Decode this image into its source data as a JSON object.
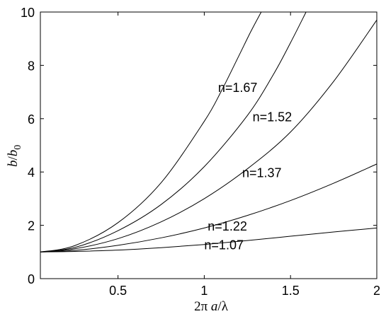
{
  "chart_data": {
    "type": "line",
    "xlabel": {
      "prefix": "2π ",
      "var": "a",
      "suffix": "/λ"
    },
    "ylabel": {
      "num": "b",
      "slash": "/",
      "den": "b",
      "sub": "0"
    },
    "xlim": [
      0.05,
      2.0
    ],
    "ylim": [
      0,
      10
    ],
    "xticks": [
      {
        "value": 0.5,
        "label": "0.5"
      },
      {
        "value": 1.0,
        "label": "1"
      },
      {
        "value": 1.5,
        "label": "1.5"
      },
      {
        "value": 2.0,
        "label": "2"
      }
    ],
    "yticks": [
      {
        "value": 0,
        "label": "0"
      },
      {
        "value": 2,
        "label": "2"
      },
      {
        "value": 4,
        "label": "4"
      },
      {
        "value": 6,
        "label": "6"
      },
      {
        "value": 8,
        "label": "8"
      },
      {
        "value": 10,
        "label": "10"
      }
    ],
    "grid": false,
    "series": [
      {
        "name": "n=1.07",
        "x": [
          0.05,
          0.25,
          0.5,
          0.75,
          1.0,
          1.25,
          1.5,
          1.75,
          2.0
        ],
        "y": [
          1.0,
          1.02,
          1.07,
          1.16,
          1.28,
          1.43,
          1.59,
          1.75,
          1.9
        ]
      },
      {
        "name": "n=1.22",
        "x": [
          0.05,
          0.25,
          0.5,
          0.75,
          1.0,
          1.25,
          1.5,
          1.75,
          2.0
        ],
        "y": [
          1.0,
          1.06,
          1.25,
          1.53,
          1.9,
          2.37,
          2.93,
          3.58,
          4.3
        ]
      },
      {
        "name": "n=1.37",
        "x": [
          0.05,
          0.25,
          0.5,
          0.75,
          1.0,
          1.25,
          1.5,
          1.75,
          2.0
        ],
        "y": [
          1.0,
          1.12,
          1.5,
          2.13,
          3.0,
          4.12,
          5.5,
          7.4,
          9.7
        ]
      },
      {
        "name": "n=1.52",
        "x": [
          0.05,
          0.25,
          0.5,
          0.75,
          1.0,
          1.25,
          1.4,
          1.5,
          1.59
        ],
        "y": [
          1.0,
          1.17,
          1.8,
          2.78,
          4.2,
          6.12,
          7.65,
          8.85,
          10.0
        ]
      },
      {
        "name": "n=1.67",
        "x": [
          0.05,
          0.25,
          0.5,
          0.75,
          1.0,
          1.1,
          1.2,
          1.27,
          1.33
        ],
        "y": [
          1.0,
          1.24,
          2.1,
          3.6,
          5.9,
          7.05,
          8.35,
          9.27,
          10.0
        ]
      }
    ]
  }
}
